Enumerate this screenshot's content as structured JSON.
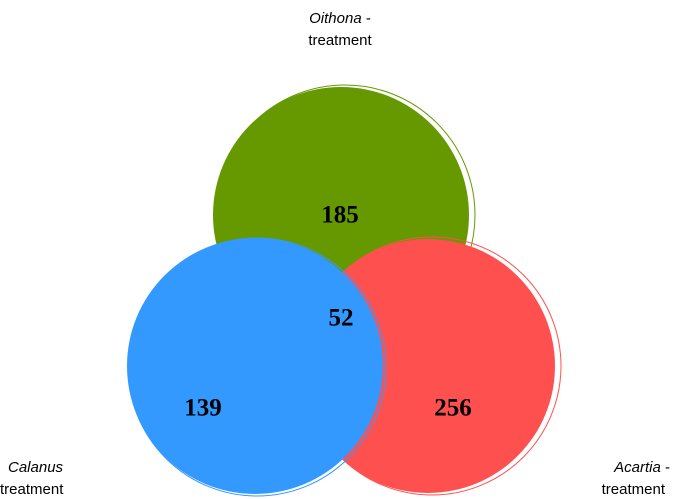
{
  "sets": [
    {
      "name": "Oithona",
      "suffix": " -",
      "line2": "treatment",
      "color": "#669900"
    },
    {
      "name": "Calanus",
      "line2": "treatment",
      "color": "#3399ff"
    },
    {
      "name": "Acartia",
      "suffix": " -",
      "line2": "treatment",
      "color": "#ff5050"
    }
  ],
  "regions": [
    {
      "sets": "Oithona",
      "count": 185
    },
    {
      "sets": "Oithona Calanus Acartia",
      "count": 52
    },
    {
      "sets": "Calanus",
      "count": 139
    },
    {
      "sets": "Acartia",
      "count": 256
    }
  ]
}
